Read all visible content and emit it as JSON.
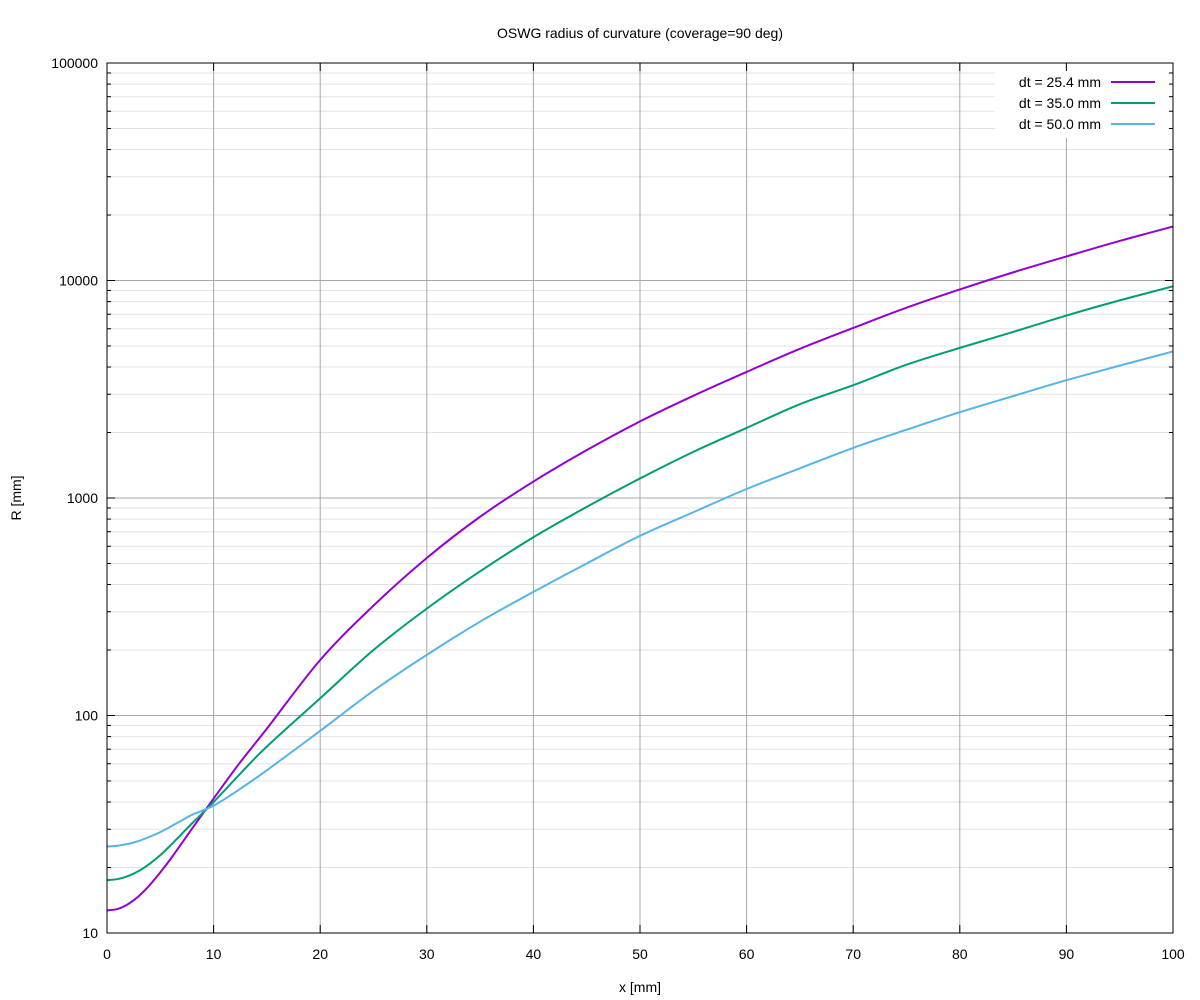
{
  "chart_data": {
    "type": "line",
    "title": "OSWG radius of curvature (coverage=90 deg)",
    "xlabel": "x [mm]",
    "ylabel": "R [mm]",
    "xlim": [
      0,
      100
    ],
    "ylim": [
      10,
      100000
    ],
    "yscale": "log",
    "grid": true,
    "legend_position": "top-right",
    "x_ticks": [
      "0",
      "10",
      "20",
      "30",
      "40",
      "50",
      "60",
      "70",
      "80",
      "90",
      "100"
    ],
    "y_ticks": [
      "10",
      "100",
      "1000",
      "10000",
      "100000"
    ],
    "x": [
      0,
      1,
      2,
      3,
      4,
      5,
      6,
      7,
      8,
      10,
      12.5,
      15,
      20,
      25,
      30,
      35,
      40,
      45,
      50,
      55,
      60,
      65,
      70,
      75,
      80,
      85,
      90,
      95,
      100
    ],
    "series": [
      {
        "name": "dt = 25.4 mm",
        "color": "#9400d3",
        "values": [
          12.7,
          12.9,
          13.6,
          14.8,
          16.6,
          19.0,
          22.0,
          25.8,
          30.3,
          41.5,
          61,
          87,
          180,
          320,
          530,
          820,
          1190,
          1660,
          2250,
          2950,
          3800,
          4850,
          6050,
          7500,
          9100,
          10900,
          12900,
          15200,
          17700
        ]
      },
      {
        "name": "dt = 35.0 mm",
        "color": "#009e73",
        "values": [
          17.5,
          17.7,
          18.3,
          19.3,
          20.8,
          22.8,
          25.4,
          28.5,
          32.0,
          40.0,
          54,
          72,
          120,
          200,
          310,
          460,
          660,
          910,
          1230,
          1630,
          2100,
          2700,
          3300,
          4100,
          4900,
          5800,
          6900,
          8100,
          9400
        ]
      },
      {
        "name": "dt = 50.0 mm",
        "color": "#56b4e9",
        "values": [
          25.0,
          25.2,
          25.7,
          26.5,
          27.7,
          29.1,
          30.9,
          32.9,
          35.0,
          38.5,
          46,
          56,
          85,
          130,
          190,
          270,
          370,
          500,
          670,
          860,
          1100,
          1370,
          1700,
          2060,
          2480,
          2940,
          3480,
          4060,
          4720
        ]
      }
    ]
  }
}
